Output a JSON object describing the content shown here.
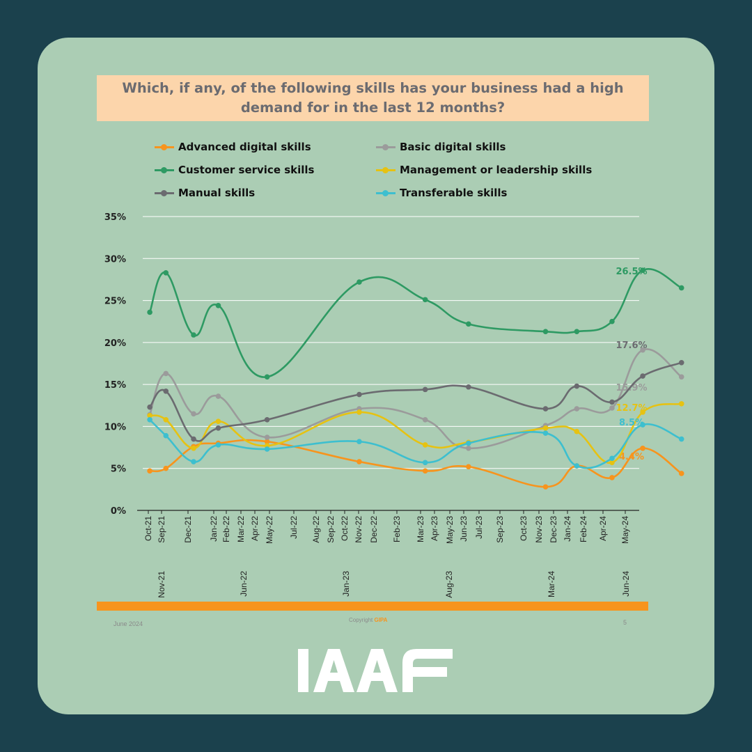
{
  "title": "Which, if any, of the following skills has your business had a high demand for in the last 12 months?",
  "footer": {
    "date": "June 2024",
    "copyright_prefix": "Copyright ",
    "copyright_brand": "GIPA",
    "page_number": "5"
  },
  "logo_text": "IAAF",
  "colors": {
    "background": "#1b414d",
    "card": "#abcdb4",
    "title_box": "#fcd5ab",
    "footer_bar": "#f7941d"
  },
  "chart_data": {
    "type": "line",
    "title": "Which, if any, of the following skills has your business had a high demand for in the last 12 months?",
    "ylim": [
      0,
      35
    ],
    "y_ticks": [
      "35%",
      "30%",
      "25%",
      "20%",
      "15%",
      "10%",
      "5%",
      "0%"
    ],
    "grid": true,
    "legend_position": "top",
    "x_dates": [
      "2021-10-20",
      "2021-11-21",
      "2022-01-15",
      "2022-03-05",
      "2022-06-10",
      "2022-12-10",
      "2023-04-20",
      "2023-07-15",
      "2023-12-15",
      "2024-02-15",
      "2024-04-25",
      "2024-06-25",
      "2024-09-10"
    ],
    "x_tick_labels_row1": [
      "Oct-21",
      "Sep-21",
      "Dec-21",
      "Jan-22",
      "Feb-22",
      "Mar-22",
      "Apr-22",
      "May-22",
      "Jul-22",
      "Aug-22",
      "Sep-22",
      "Oct-22",
      "Nov-22",
      "Dec-22",
      "Feb-23",
      "Mar-23",
      "Apr-23",
      "May-23",
      "Jun-23",
      "Jul-23",
      "Sep-23",
      "Oct-23",
      "Nov-23",
      "Dec-23",
      "Jan-24",
      "Feb-24",
      "Apr-24",
      "May-24"
    ],
    "x_tick_labels_row2": [
      "Nov-21",
      "Jun-22",
      "Jan-23",
      "Aug-23",
      "Mar-24",
      "Jun-24"
    ],
    "series": [
      {
        "name": "Advanced digital skills",
        "color": "#f7941d",
        "values": [
          4.7,
          5.0,
          7.6,
          8.0,
          8.2,
          5.8,
          4.7,
          5.2,
          2.8,
          5.3,
          3.9,
          7.4,
          4.4
        ],
        "end_label": "4.4%"
      },
      {
        "name": "Basic digital skills",
        "color": "#9b9b9b",
        "values": [
          11.4,
          16.3,
          11.5,
          13.6,
          8.7,
          12.1,
          10.8,
          7.4,
          10.1,
          12.1,
          12.2,
          19.1,
          15.9
        ],
        "end_label": "15.9%"
      },
      {
        "name": "Customer service skills",
        "color": "#2e9a63",
        "values": [
          23.6,
          28.3,
          20.9,
          24.4,
          15.9,
          27.2,
          25.1,
          22.2,
          21.3,
          21.3,
          22.5,
          28.6,
          26.5
        ],
        "end_label": "26.5%"
      },
      {
        "name": "Management or leadership skills",
        "color": "#e6c212",
        "values": [
          11.3,
          10.8,
          7.4,
          10.6,
          7.7,
          11.7,
          7.8,
          8.1,
          9.8,
          9.4,
          5.7,
          11.7,
          12.7
        ],
        "end_label": "12.7%"
      },
      {
        "name": "Manual skills",
        "color": "#6b6b70",
        "values": [
          12.3,
          14.2,
          8.5,
          9.8,
          10.8,
          13.8,
          14.4,
          14.7,
          12.1,
          14.8,
          12.9,
          16.0,
          17.6
        ],
        "end_label": "17.6%"
      },
      {
        "name": "Transferable skills",
        "color": "#3dbfcf",
        "values": [
          10.8,
          8.9,
          5.8,
          7.8,
          7.3,
          8.2,
          5.7,
          8.0,
          9.2,
          5.3,
          6.2,
          10.2,
          8.5
        ],
        "end_label": "8.5%"
      }
    ]
  }
}
